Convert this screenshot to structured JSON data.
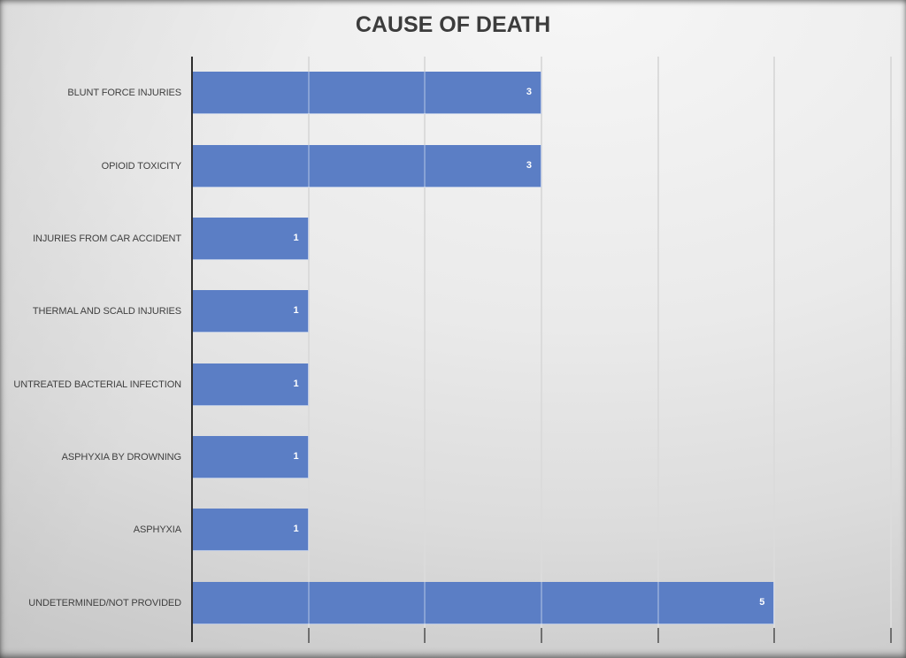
{
  "slide": {
    "background_light": "#F4F4F4",
    "background_dark": "#C3C3C3"
  },
  "chart_data": {
    "type": "bar",
    "orientation": "horizontal",
    "title": "CAUSE OF DEATH",
    "categories": [
      "BLUNT FORCE INJURIES",
      "OPIOID TOXICITY",
      "INJURIES FROM CAR ACCIDENT",
      "THERMAL AND SCALD INJURIES",
      "UNTREATED BACTERIAL INFECTION",
      "ASPHYXIA BY DROWNING",
      "ASPHYXIA",
      "UNDETERMINED/NOT PROVIDED"
    ],
    "values": [
      3,
      3,
      1,
      1,
      1,
      1,
      1,
      5
    ],
    "xlabel": "",
    "ylabel": "",
    "xlim": [
      0,
      6
    ],
    "x_major_unit": 1,
    "grid": true,
    "legend": "none",
    "data_label_position": "inside-end",
    "colors": {
      "bar": "#5B7EC5",
      "data_label": "#FFFFFF",
      "category_label": "#3F3F3F",
      "title": "#3C3C3C",
      "axis_line": "#2E2E2E",
      "gridline": "#CDCDCD",
      "tick": "#6F6F6F"
    }
  }
}
